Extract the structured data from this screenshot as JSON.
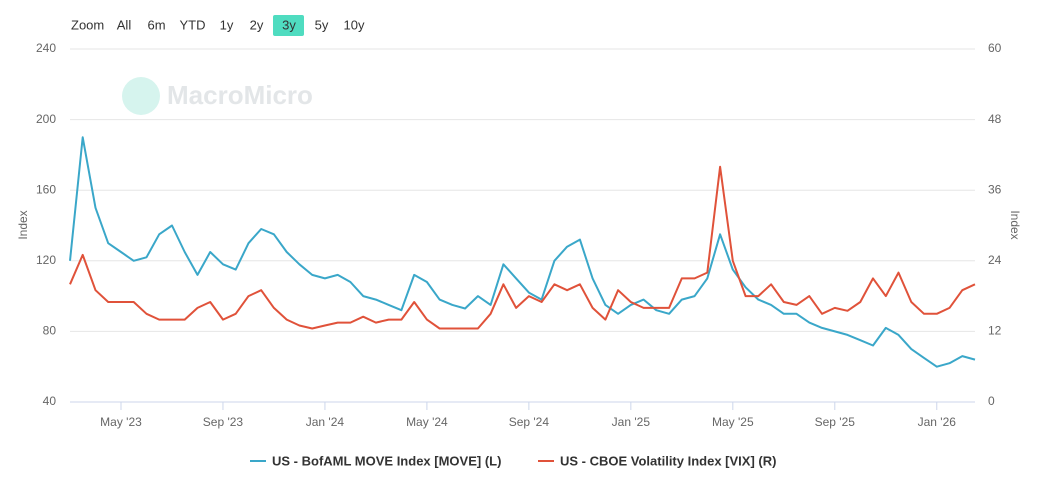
{
  "chart_data": {
    "type": "line",
    "watermark": "MacroMicro",
    "zoom": {
      "label": "Zoom",
      "buttons": [
        "All",
        "6m",
        "YTD",
        "1y",
        "2y",
        "3y",
        "5y",
        "10y"
      ],
      "selected": "3y"
    },
    "y_label": "Index",
    "y2_label": "Index",
    "categories": [
      null,
      null,
      null,
      null,
      "May '23",
      null,
      null,
      null,
      null,
      null,
      null,
      null,
      "Sep '23",
      null,
      null,
      null,
      null,
      null,
      null,
      null,
      "Jan '24",
      null,
      null,
      null,
      null,
      null,
      null,
      null,
      "May '24",
      null,
      null,
      null,
      null,
      null,
      null,
      null,
      "Sep '24",
      null,
      null,
      null,
      null,
      null,
      null,
      null,
      "Jan '25",
      null,
      null,
      null,
      null,
      null,
      null,
      null,
      "May '25",
      null,
      null,
      null,
      null,
      null,
      null,
      null,
      "Sep '25",
      null,
      null,
      null,
      null,
      null,
      null,
      null,
      "Jan '26",
      null,
      null,
      null
    ],
    "ylim": [
      40,
      240
    ],
    "yticks": [
      40,
      80,
      120,
      160,
      200,
      240
    ],
    "y2lim": [
      0,
      60
    ],
    "y2ticks": [
      0,
      12,
      24,
      36,
      48,
      60
    ],
    "grid": true,
    "series": [
      {
        "name": "US - BofAML MOVE Index [MOVE] (L)",
        "color": "#3aa7c9",
        "axis": "y",
        "values": [
          120,
          190,
          150,
          130,
          125,
          120,
          122,
          135,
          140,
          125,
          112,
          125,
          118,
          115,
          130,
          138,
          135,
          125,
          118,
          112,
          110,
          112,
          108,
          100,
          98,
          95,
          92,
          112,
          108,
          98,
          95,
          93,
          100,
          95,
          118,
          110,
          102,
          98,
          120,
          128,
          132,
          110,
          95,
          90,
          95,
          98,
          92,
          90,
          98,
          100,
          110,
          135,
          115,
          105,
          98,
          95,
          90,
          90,
          85,
          82,
          80,
          78,
          75,
          72,
          82,
          78,
          70,
          65,
          60,
          62,
          66,
          64
        ]
      },
      {
        "name": "US - CBOE Volatility Index [VIX] (R)",
        "color": "#e0523a",
        "axis": "y2",
        "values": [
          20,
          25,
          19,
          17,
          17,
          17,
          15,
          14,
          14,
          14,
          16,
          17,
          14,
          15,
          18,
          19,
          16,
          14,
          13,
          12.5,
          13,
          13.5,
          13.5,
          14.5,
          13.5,
          14,
          14,
          17,
          14,
          12.5,
          12.5,
          12.5,
          12.5,
          15,
          20,
          16,
          18,
          17,
          20,
          19,
          20,
          16,
          14,
          19,
          17,
          16,
          16,
          16,
          21,
          21,
          22,
          40,
          24,
          18,
          18,
          20,
          17,
          16.5,
          18,
          15,
          16,
          15.5,
          17,
          21,
          18,
          22,
          17,
          15,
          15,
          16,
          19,
          20
        ]
      }
    ]
  }
}
